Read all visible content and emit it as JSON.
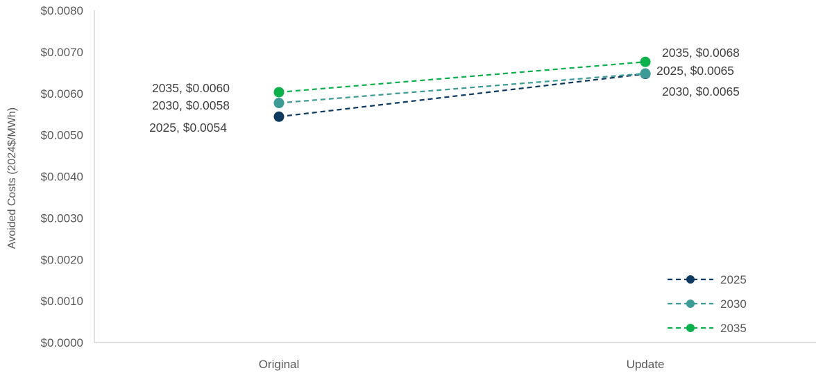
{
  "chart_data": {
    "type": "line",
    "title": "",
    "xlabel": "",
    "ylabel": "Avoided Costs (2024$/MWh)",
    "categories": [
      "Original",
      "Update"
    ],
    "ylim": [
      0,
      0.008
    ],
    "yticks": [
      0,
      0.001,
      0.002,
      0.003,
      0.004,
      0.005,
      0.006,
      0.007,
      0.008
    ],
    "ytick_labels": [
      "$0.0000",
      "$0.0010",
      "$0.0020",
      "$0.0030",
      "$0.0040",
      "$0.0050",
      "$0.0060",
      "$0.0070",
      "$0.0080"
    ],
    "grid": false,
    "legend_position": "bottom-right",
    "line_style": "dashed",
    "series": [
      {
        "name": "2025",
        "color": "#0e3a5f",
        "values": [
          0.00544,
          0.00647
        ],
        "labels": [
          "2025, $0.0054",
          "2025, $0.0065"
        ]
      },
      {
        "name": "2030",
        "color": "#3c9b94",
        "values": [
          0.00577,
          0.00648
        ],
        "labels": [
          "2030, $0.0058",
          "2030, $0.0065"
        ]
      },
      {
        "name": "2035",
        "color": "#0db14b",
        "values": [
          0.00603,
          0.00676
        ],
        "labels": [
          "2035, $0.0060",
          "2035, $0.0068"
        ]
      }
    ]
  }
}
